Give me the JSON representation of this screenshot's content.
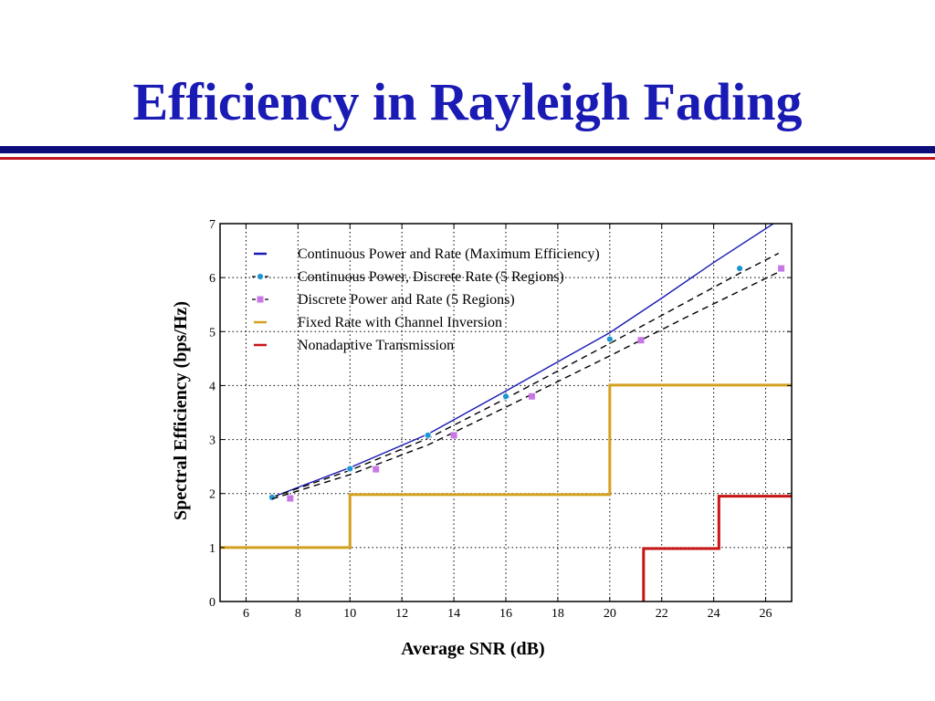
{
  "slide": {
    "title": "Efficiency in Rayleigh Fading",
    "title_color": "#1a1ab4",
    "rule_colors": {
      "primary": "#0d0d7a",
      "secondary": "#c0141e"
    }
  },
  "chart_data": {
    "type": "line",
    "xlabel": "Average SNR (dB)",
    "ylabel": "Spectral Efficiency (bps/Hz)",
    "xlim": [
      5,
      27
    ],
    "ylim": [
      0,
      7
    ],
    "xticks": [
      6,
      8,
      10,
      12,
      14,
      16,
      18,
      20,
      22,
      24,
      26
    ],
    "yticks": [
      0,
      1,
      2,
      3,
      4,
      5,
      6,
      7
    ],
    "grid": true,
    "legend_position": "top-left",
    "series": [
      {
        "name": "Continuous Power and Rate (Maximum Efficiency)",
        "style": "solid",
        "color": "#1a1ab4",
        "x": [
          7,
          10,
          13,
          16,
          20,
          22,
          24,
          26.3
        ],
        "y": [
          1.93,
          2.48,
          3.1,
          3.9,
          4.98,
          5.62,
          6.28,
          7.0
        ]
      },
      {
        "name": "Continuous Power, Discrete Rate (5 Regions)",
        "style": "dashed-circle",
        "color": "#000000",
        "marker_color": "#1e96d2",
        "x": [
          7,
          10,
          13,
          16,
          20,
          25,
          26.5
        ],
        "y": [
          1.93,
          2.43,
          3.02,
          3.76,
          4.78,
          6.08,
          6.45
        ],
        "markers_x": [
          7,
          10,
          13,
          16,
          20,
          25
        ],
        "markers_y": [
          1.93,
          2.46,
          3.08,
          3.8,
          4.86,
          6.17
        ]
      },
      {
        "name": "Discrete Power and Rate (5 Regions)",
        "style": "dashed-square",
        "color": "#000000",
        "marker_color": "#c878e6",
        "x": [
          7,
          10,
          13,
          16,
          20,
          23,
          26.7
        ],
        "y": [
          1.9,
          2.35,
          2.9,
          3.6,
          4.55,
          5.28,
          6.15
        ],
        "markers_x": [
          7.7,
          11,
          14,
          17,
          21.2,
          26.6
        ],
        "markers_y": [
          1.91,
          2.45,
          3.08,
          3.8,
          4.84,
          6.17
        ]
      },
      {
        "name": "Fixed Rate with Channel Inversion",
        "style": "step",
        "color": "#d4a020",
        "x": [
          5,
          10,
          10,
          20,
          20,
          27
        ],
        "y": [
          1,
          1,
          1.98,
          1.98,
          4.01,
          4.01
        ]
      },
      {
        "name": "Nonadaptive Transmission",
        "style": "step",
        "color": "#c81414",
        "x": [
          21.3,
          21.3,
          24.2,
          24.2,
          27
        ],
        "y": [
          0,
          0.98,
          0.98,
          1.95,
          1.95
        ]
      }
    ]
  }
}
